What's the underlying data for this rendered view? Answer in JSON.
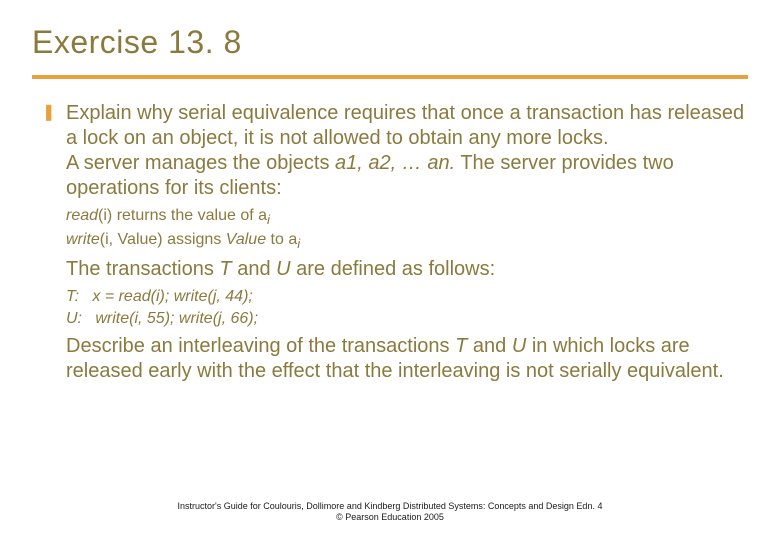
{
  "colors": {
    "heading": "#8b7a3e",
    "rule": "#e9a23b",
    "bullet": "#e9a23b",
    "footer": "#1a1a1a",
    "background": "#ffffff"
  },
  "title": "Exercise 13. 8",
  "bullet_char": "❚",
  "para1": "Explain why serial equivalence requires that once a transaction has released a lock on an object, it is not allowed to obtain any more locks.",
  "para1b_pre": "A server manages the objects ",
  "para1b_list": "a1, a2, … an.",
  "para1b_post": " The server provides two operations for its clients:",
  "op_read_pre": "read",
  "op_read_mid": "(i) returns the value of a",
  "op_read_sub": "i",
  "op_write_pre": "write",
  "op_write_mid": "(i, Value) assigns ",
  "op_write_val": "Value",
  "op_write_post": " to a",
  "op_write_sub": "i",
  "trans_intro_pre": "The transactions ",
  "trans_intro_T": "T",
  "trans_intro_mid": " and ",
  "trans_intro_U": "U",
  "trans_intro_post": " are defined as follows:",
  "tline_label_T": "T:",
  "tline_T": "   x = read(i); write(j, 44);",
  "tline_label_U": "U:",
  "tline_U": "   write(i, 55); write(j, 66);",
  "para3_pre": "Describe an interleaving of the transactions ",
  "para3_T": "T",
  "para3_mid": " and ",
  "para3_U": "U",
  "para3_post": " in which locks are released early with the effect that the interleaving is not serially equivalent.",
  "footer1": "Instructor's Guide for  Coulouris, Dollimore and Kindberg   Distributed Systems: Concepts and Design   Edn. 4",
  "footer2": "©  Pearson Education 2005"
}
